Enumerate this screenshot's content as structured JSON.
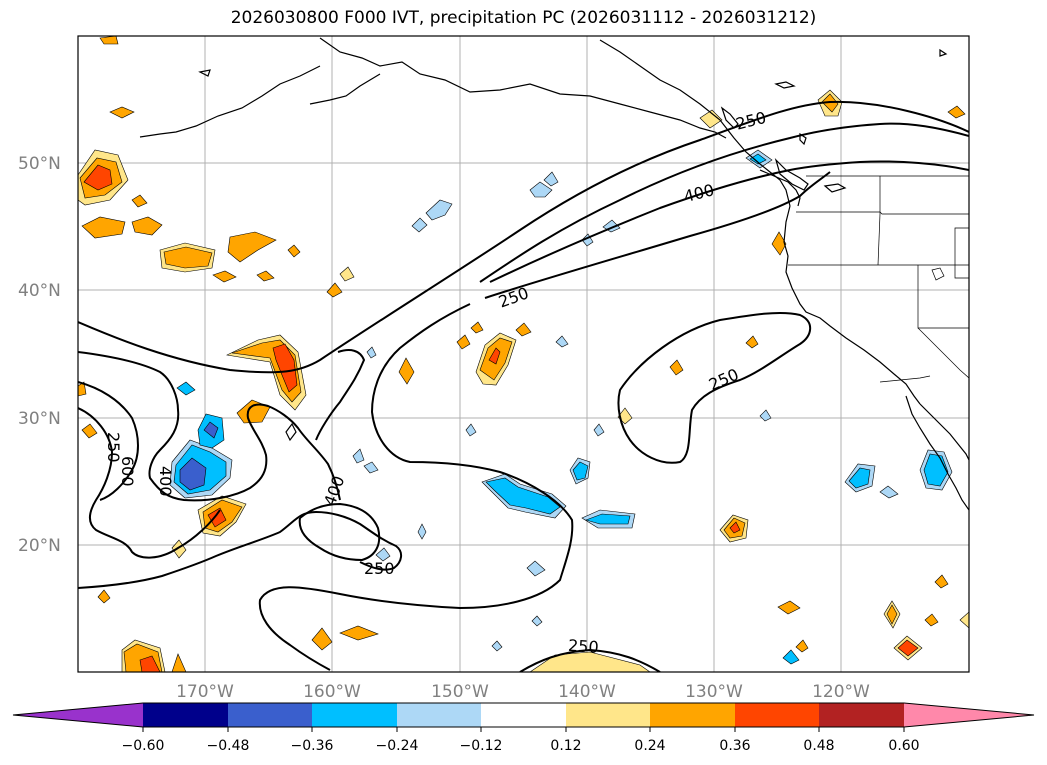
{
  "title": "2026030800 F000 IVT, precipitation PC (2026031112 - 2026031212)",
  "map": {
    "lat_labels": [
      "50°N",
      "40°N",
      "30°N",
      "20°N"
    ],
    "lon_labels": [
      "170°W",
      "160°W",
      "150°W",
      "140°W",
      "130°W",
      "120°W"
    ],
    "contour_labels": [
      "250",
      "400",
      "250",
      "250",
      "400",
      "600",
      "250",
      "400",
      "250",
      "250"
    ]
  },
  "colorbar": {
    "tick_labels": [
      "−0.60",
      "−0.48",
      "−0.36",
      "−0.24",
      "−0.12",
      "0.12",
      "0.24",
      "0.36",
      "0.48",
      "0.60"
    ],
    "colors": [
      "#9932cc",
      "#00008b",
      "#3a5fcd",
      "#00bfff",
      "#add8f6",
      "#ffffff",
      "#ffe68a",
      "#ffa500",
      "#ff4500",
      "#b22222",
      "#ff88aa"
    ]
  }
}
